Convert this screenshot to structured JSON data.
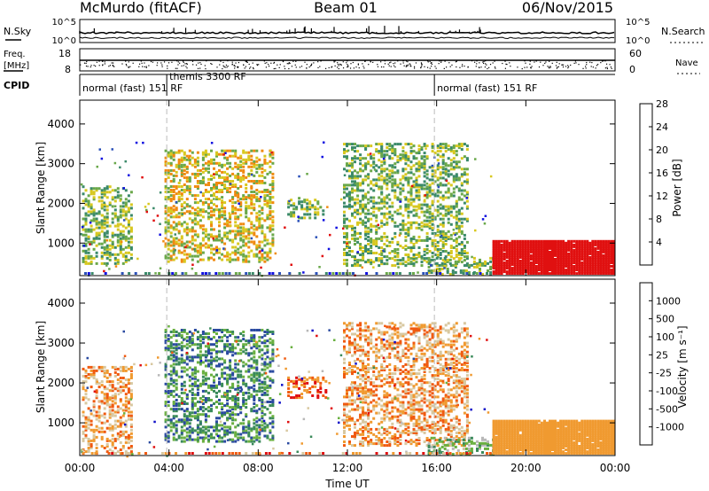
{
  "header": {
    "station": "McMurdo (fitACF)",
    "beam": "Beam 01",
    "date": "06/Nov/2015"
  },
  "strips": {
    "nsky_label": "N.Sky",
    "nsky_ticks": [
      "10^5",
      "10^0"
    ],
    "nsearch_label": "N.Search",
    "nsearch_ticks": [
      "10^5",
      "10^0"
    ],
    "freq_label_1": "Freq.",
    "freq_label_2": "[MHz]",
    "freq_ticks": [
      "18",
      "8"
    ],
    "nave_label": "Nave",
    "nave_ticks": [
      "60",
      "0"
    ],
    "cpid_label": "CPID",
    "cpid_segments": [
      {
        "start": 0,
        "end": 3.9,
        "label": "normal (fast) 151 RF"
      },
      {
        "start": 3.9,
        "end": 15.9,
        "label": "themis 3300 RF"
      },
      {
        "start": 15.9,
        "end": 24,
        "label": "normal (fast) 151 RF"
      }
    ]
  },
  "chart_data": [
    {
      "type": "heatmap",
      "panel": "power",
      "ylabel": "Slant Range [km]",
      "yticks": [
        "1000",
        "2000",
        "3000",
        "4000"
      ],
      "ylim": [
        180,
        4600
      ],
      "xlim_hours": [
        0,
        24
      ],
      "colorbar_label": "Power [dB]",
      "colorbar_ticks": [
        "4",
        "8",
        "12",
        "16",
        "20",
        "24",
        "28"
      ],
      "colorbar_colors": [
        "#1010e0",
        "#2a50b8",
        "#3b8a6a",
        "#6aa84a",
        "#d8c820",
        "#f08a10",
        "#e01010"
      ],
      "echo_regions": [
        {
          "t0": 0.1,
          "t1": 2.3,
          "r0": 450,
          "r1": 2400,
          "level": 3
        },
        {
          "t0": 3.8,
          "t1": 8.7,
          "r0": 500,
          "r1": 3300,
          "level": 4
        },
        {
          "t0": 9.3,
          "t1": 11.0,
          "r0": 1600,
          "r1": 2100,
          "level": 3
        },
        {
          "t0": 11.8,
          "t1": 17.4,
          "r0": 400,
          "r1": 3500,
          "level": 3
        },
        {
          "t0": 15.6,
          "t1": 18.5,
          "r0": 180,
          "r1": 600,
          "level": 3
        },
        {
          "t0": 18.5,
          "t1": 24.0,
          "r0": 200,
          "r1": 1050,
          "level": 6
        }
      ]
    },
    {
      "type": "heatmap",
      "panel": "velocity",
      "ylabel": "Slant Range [km]",
      "yticks": [
        "1000",
        "2000",
        "3000",
        "4000"
      ],
      "ylim": [
        180,
        4600
      ],
      "xlim_hours": [
        0,
        24
      ],
      "colorbar_label": "Velocity [m s⁻¹]",
      "colorbar_ticks": [
        "-1000",
        "-500",
        "-100",
        "-25",
        "25",
        "100",
        "500",
        "1000"
      ],
      "colorbar_colors": [
        "#e01010",
        "#f05a10",
        "#f09a30",
        "#d8c8a0",
        "#b8b8b8",
        "#6ab040",
        "#3a8a5a",
        "#2a4aa0",
        "#1010c8"
      ],
      "echo_regions": [
        {
          "t0": 0.1,
          "t1": 2.3,
          "r0": 200,
          "r1": 2400,
          "level": 2
        },
        {
          "t0": 3.8,
          "t1": 8.7,
          "r0": 500,
          "r1": 3300,
          "level": 6
        },
        {
          "t0": 9.3,
          "t1": 11.0,
          "r0": 1600,
          "r1": 2100,
          "level": 1
        },
        {
          "t0": 11.8,
          "t1": 17.4,
          "r0": 400,
          "r1": 3500,
          "level": 2
        },
        {
          "t0": 15.6,
          "t1": 18.5,
          "r0": 180,
          "r1": 600,
          "level": 5
        },
        {
          "t0": 18.5,
          "t1": 24.0,
          "r0": 200,
          "r1": 1050,
          "level": 2
        }
      ]
    }
  ],
  "time_axis": {
    "label": "Time UT",
    "ticks": [
      "00:00",
      "04:00",
      "08:00",
      "12:00",
      "16:00",
      "20:00",
      "00:00"
    ]
  }
}
